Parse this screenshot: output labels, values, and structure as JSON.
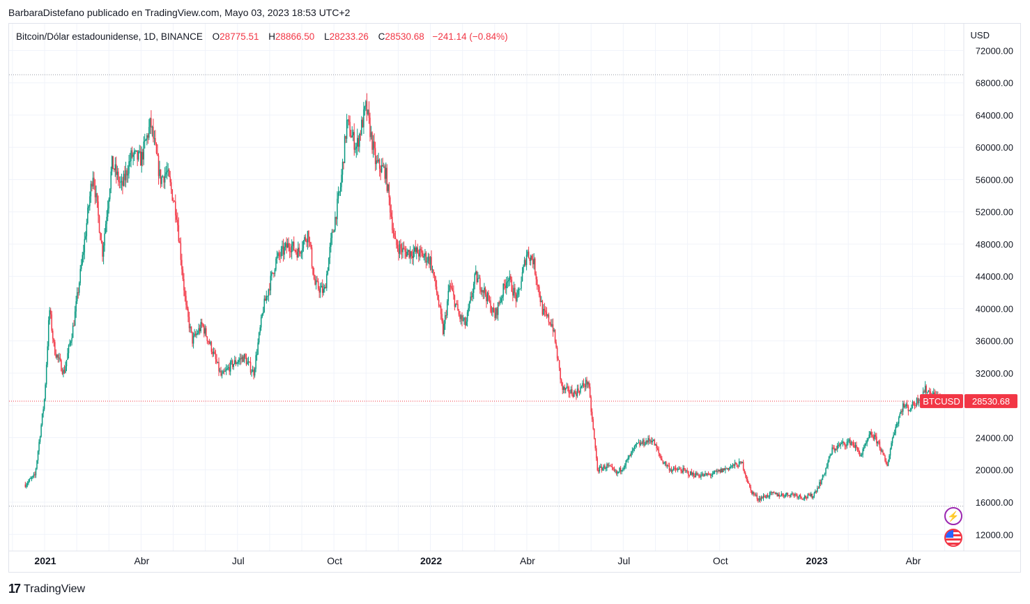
{
  "header": {
    "publisher_line": "BarbaraDistefano publicado en TradingView.com, Mayo 03, 2023 18:53 UTC+2"
  },
  "legend": {
    "symbol": "Bitcoin/Dólar estadounidense, 1D, BINANCE",
    "open_label": "O",
    "open": "28775.51",
    "high_label": "H",
    "high": "28866.50",
    "low_label": "L",
    "low": "28233.26",
    "close_label": "C",
    "close": "28530.68",
    "change": "−241.14 (−0.84%)"
  },
  "axis": {
    "currency": "USD",
    "y_ticks": [
      "72000.00",
      "68000.00",
      "64000.00",
      "60000.00",
      "56000.00",
      "52000.00",
      "48000.00",
      "44000.00",
      "40000.00",
      "36000.00",
      "32000.00",
      "24000.00",
      "20000.00",
      "16000.00",
      "12000.00"
    ],
    "x_ticks": [
      {
        "label": "2021",
        "month": 0,
        "bold": true
      },
      {
        "label": "Abr",
        "month": 3,
        "bold": false
      },
      {
        "label": "Jul",
        "month": 6,
        "bold": false
      },
      {
        "label": "Oct",
        "month": 9,
        "bold": false
      },
      {
        "label": "2022",
        "month": 12,
        "bold": true
      },
      {
        "label": "Abr",
        "month": 15,
        "bold": false
      },
      {
        "label": "Jul",
        "month": 18,
        "bold": false
      },
      {
        "label": "Oct",
        "month": 21,
        "bold": false
      },
      {
        "label": "2023",
        "month": 24,
        "bold": true
      },
      {
        "label": "Abr",
        "month": 27,
        "bold": false
      }
    ]
  },
  "price_tag": {
    "symbol": "BTCUSD",
    "value": "28530.68"
  },
  "footer": {
    "brand": "TradingView",
    "logo": "17"
  },
  "colors": {
    "up": "#089981",
    "down": "#f23645",
    "grid": "#f0f3fa",
    "text": "#131722",
    "price_line": "#f23645",
    "dotted": "#9598a1"
  },
  "icons": {
    "alert": "lightning-icon",
    "flag": "us-flag-icon"
  },
  "chart_data": {
    "type": "candlestick",
    "title": "Bitcoin/Dólar estadounidense, 1D, BINANCE",
    "x_unit": "months since 2021-01",
    "ylim": [
      10000,
      74000
    ],
    "horizontal_lines": [
      69000,
      15500,
      28530.68
    ],
    "anchors": [
      [
        -0.6,
        18200
      ],
      [
        -0.3,
        19300
      ],
      [
        0.0,
        29000
      ],
      [
        0.15,
        40000
      ],
      [
        0.3,
        35000
      ],
      [
        0.6,
        32000
      ],
      [
        0.9,
        38000
      ],
      [
        1.2,
        47000
      ],
      [
        1.5,
        57000
      ],
      [
        1.8,
        47000
      ],
      [
        2.1,
        58000
      ],
      [
        2.4,
        55000
      ],
      [
        2.7,
        59000
      ],
      [
        3.0,
        58500
      ],
      [
        3.3,
        63000
      ],
      [
        3.6,
        56000
      ],
      [
        3.8,
        57000
      ],
      [
        4.1,
        52000
      ],
      [
        4.4,
        40000
      ],
      [
        4.6,
        36000
      ],
      [
        4.9,
        38000
      ],
      [
        5.2,
        35000
      ],
      [
        5.5,
        31500
      ],
      [
        5.8,
        33000
      ],
      [
        6.2,
        34000
      ],
      [
        6.5,
        32000
      ],
      [
        6.8,
        40000
      ],
      [
        7.2,
        46000
      ],
      [
        7.6,
        48000
      ],
      [
        7.9,
        47000
      ],
      [
        8.2,
        49500
      ],
      [
        8.4,
        43000
      ],
      [
        8.7,
        42000
      ],
      [
        8.9,
        48000
      ],
      [
        9.2,
        55000
      ],
      [
        9.4,
        63000
      ],
      [
        9.7,
        60000
      ],
      [
        10.0,
        65000
      ],
      [
        10.3,
        58000
      ],
      [
        10.6,
        57000
      ],
      [
        10.9,
        48000
      ],
      [
        11.2,
        47000
      ],
      [
        11.6,
        47000
      ],
      [
        12.0,
        46000
      ],
      [
        12.2,
        42000
      ],
      [
        12.4,
        37000
      ],
      [
        12.6,
        43000
      ],
      [
        12.9,
        39000
      ],
      [
        13.1,
        38000
      ],
      [
        13.4,
        44000
      ],
      [
        13.7,
        42000
      ],
      [
        14.0,
        39000
      ],
      [
        14.4,
        44000
      ],
      [
        14.7,
        41000
      ],
      [
        15.0,
        47000
      ],
      [
        15.2,
        46000
      ],
      [
        15.5,
        39500
      ],
      [
        15.8,
        38000
      ],
      [
        16.1,
        30000
      ],
      [
        16.5,
        29500
      ],
      [
        16.9,
        31000
      ],
      [
        17.2,
        20000
      ],
      [
        17.5,
        20500
      ],
      [
        17.8,
        19500
      ],
      [
        18.1,
        21000
      ],
      [
        18.4,
        23000
      ],
      [
        18.7,
        23500
      ],
      [
        18.9,
        23800
      ],
      [
        19.2,
        21200
      ],
      [
        19.5,
        20000
      ],
      [
        19.8,
        20000
      ],
      [
        20.1,
        19500
      ],
      [
        20.5,
        19300
      ],
      [
        20.8,
        19500
      ],
      [
        21.1,
        20000
      ],
      [
        21.4,
        20500
      ],
      [
        21.7,
        20800
      ],
      [
        21.95,
        17500
      ],
      [
        22.2,
        16400
      ],
      [
        22.6,
        17000
      ],
      [
        22.9,
        16900
      ],
      [
        23.3,
        17000
      ],
      [
        23.6,
        16600
      ],
      [
        23.9,
        16800
      ],
      [
        24.2,
        19000
      ],
      [
        24.5,
        22500
      ],
      [
        24.8,
        23200
      ],
      [
        25.1,
        23500
      ],
      [
        25.4,
        21800
      ],
      [
        25.7,
        24500
      ],
      [
        25.95,
        23300
      ],
      [
        26.2,
        20400
      ],
      [
        26.4,
        24500
      ],
      [
        26.7,
        28000
      ],
      [
        26.9,
        27600
      ],
      [
        27.1,
        28400
      ],
      [
        27.4,
        30000
      ],
      [
        27.7,
        29200
      ],
      [
        28.0,
        28530.68
      ]
    ],
    "open": 28775.51,
    "high": 28866.5,
    "low": 28233.26,
    "close": 28530.68,
    "change": -241.14,
    "change_pct": -0.84
  }
}
